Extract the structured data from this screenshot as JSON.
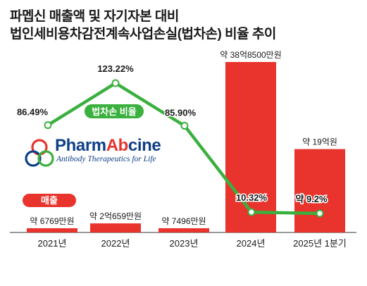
{
  "title": {
    "line1": "파멥신 매출액 및 자기자본 대비",
    "line2": "법인세비용차감전계속사업손실(법차손) 비율 추이"
  },
  "logo": {
    "name_part1": "Pharm",
    "name_part2": "Ab",
    "name_part3": "cine",
    "tagline": "Antibody Therapeutics for Life"
  },
  "colors": {
    "bar": "#e8342c",
    "line": "#3ab03e",
    "logo_blue": "#0e3f86",
    "logo_red": "#e8342c",
    "logo_green": "#3ab03e"
  },
  "chart_data": {
    "type": "bar",
    "categories": [
      "2021년",
      "2022년",
      "2023년",
      "2024년",
      "2025년 1분기"
    ],
    "series": [
      {
        "name": "매출",
        "type": "bar",
        "values": [
          6769,
          20659,
          7496,
          388500,
          190000
        ],
        "labels": [
          "약 6769만원",
          "약 2억659만원",
          "약 7496만원",
          "약 38억8500만원",
          "약 19억원"
        ]
      },
      {
        "name": "법차손 비율",
        "type": "line",
        "values": [
          86.49,
          123.22,
          85.9,
          10.32,
          9.2
        ],
        "labels": [
          "86.49%",
          "123.22%",
          "85.90%",
          "10.32%",
          "약 9.2%"
        ]
      }
    ],
    "legend": [
      "매출",
      "법차손 비율"
    ]
  }
}
